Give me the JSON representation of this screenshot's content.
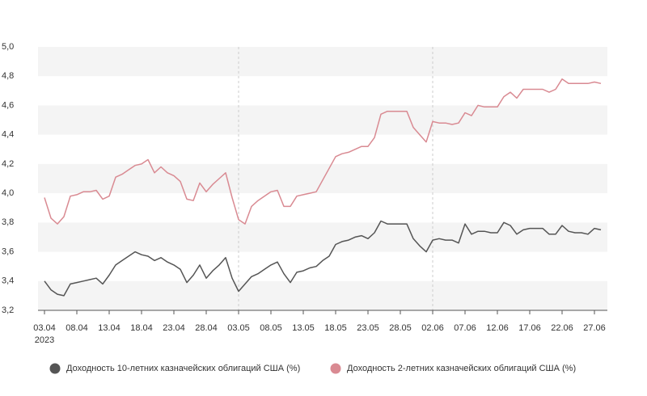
{
  "chart_data": {
    "type": "line",
    "categories": [
      "03.04",
      null,
      null,
      null,
      null,
      "08.04",
      null,
      null,
      null,
      null,
      "13.04",
      null,
      null,
      null,
      null,
      "18.04",
      null,
      null,
      null,
      null,
      "23.04",
      null,
      null,
      null,
      null,
      "28.04",
      null,
      null,
      null,
      null,
      "03.05",
      null,
      null,
      null,
      null,
      "08.05",
      null,
      null,
      null,
      null,
      "13.05",
      null,
      null,
      null,
      null,
      "18.05",
      null,
      null,
      null,
      null,
      "23.05",
      null,
      null,
      null,
      null,
      "28.05",
      null,
      null,
      null,
      null,
      "02.06",
      null,
      null,
      null,
      null,
      "07.06",
      null,
      null,
      null,
      null,
      "12.06",
      null,
      null,
      null,
      null,
      "17.06",
      null,
      null,
      null,
      null,
      "22.06",
      null,
      null,
      null,
      null,
      "27.06",
      null
    ],
    "x_sublabel": "2023",
    "series": [
      {
        "name": "Доходность 10-летних казначейских облигаций США (%)",
        "color": "#555555",
        "values": [
          3.4,
          3.34,
          3.31,
          3.3,
          3.38,
          3.39,
          3.4,
          3.41,
          3.42,
          3.38,
          3.44,
          3.51,
          3.54,
          3.57,
          3.6,
          3.58,
          3.57,
          3.54,
          3.56,
          3.53,
          3.51,
          3.48,
          3.39,
          3.44,
          3.51,
          3.42,
          3.47,
          3.51,
          3.56,
          3.42,
          3.33,
          3.38,
          3.43,
          3.45,
          3.48,
          3.51,
          3.53,
          3.45,
          3.39,
          3.46,
          3.47,
          3.49,
          3.5,
          3.54,
          3.57,
          3.65,
          3.67,
          3.68,
          3.7,
          3.71,
          3.69,
          3.73,
          3.81,
          3.79,
          3.79,
          3.79,
          3.79,
          3.69,
          3.64,
          3.6,
          3.68,
          3.69,
          3.68,
          3.68,
          3.66,
          3.79,
          3.72,
          3.74,
          3.74,
          3.73,
          3.73,
          3.8,
          3.78,
          3.72,
          3.75,
          3.76,
          3.76,
          3.76,
          3.72,
          3.72,
          3.78,
          3.74,
          3.73,
          3.73,
          3.72,
          3.76,
          3.75
        ]
      },
      {
        "name": "Доходность 2-летних казначейских облигаций США (%)",
        "color": "#d98a92",
        "values": [
          3.97,
          3.83,
          3.79,
          3.84,
          3.98,
          3.99,
          4.01,
          4.01,
          4.02,
          3.96,
          3.98,
          4.11,
          4.13,
          4.16,
          4.19,
          4.2,
          4.23,
          4.14,
          4.18,
          4.14,
          4.12,
          4.08,
          3.96,
          3.95,
          4.07,
          4.01,
          4.06,
          4.1,
          4.14,
          3.97,
          3.82,
          3.79,
          3.91,
          3.95,
          3.98,
          4.01,
          4.02,
          3.91,
          3.91,
          3.98,
          3.99,
          4.0,
          4.01,
          4.09,
          4.17,
          4.25,
          4.27,
          4.28,
          4.3,
          4.32,
          4.32,
          4.38,
          4.54,
          4.56,
          4.56,
          4.56,
          4.56,
          4.45,
          4.4,
          4.35,
          4.49,
          4.48,
          4.48,
          4.47,
          4.48,
          4.55,
          4.53,
          4.6,
          4.59,
          4.59,
          4.59,
          4.66,
          4.69,
          4.65,
          4.71,
          4.71,
          4.71,
          4.71,
          4.69,
          4.71,
          4.78,
          4.75,
          4.75,
          4.75,
          4.75,
          4.76,
          4.75
        ]
      }
    ],
    "ylim": [
      3.2,
      5.0
    ],
    "yticks": [
      {
        "value": 3.2,
        "label": "3,2"
      },
      {
        "value": 3.4,
        "label": "3,4"
      },
      {
        "value": 3.6,
        "label": "3,6"
      },
      {
        "value": 3.8,
        "label": "3,8"
      },
      {
        "value": 4.0,
        "label": "4,0"
      },
      {
        "value": 4.2,
        "label": "4,2"
      },
      {
        "value": 4.4,
        "label": "4,4"
      },
      {
        "value": 4.6,
        "label": "4,6"
      },
      {
        "value": 4.8,
        "label": "4,8"
      },
      {
        "value": 5.0,
        "label": "5,0"
      }
    ],
    "grid": "bands"
  }
}
